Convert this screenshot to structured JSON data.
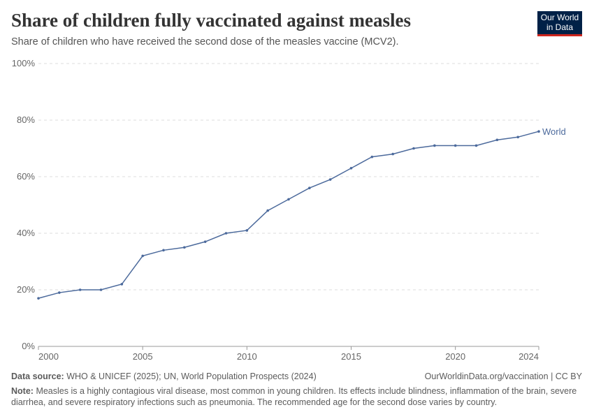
{
  "header": {
    "title": "Share of children fully vaccinated against measles",
    "subtitle": "Share of children who have received the second dose of the measles vaccine (MCV2).",
    "logo_text": "Our World in Data"
  },
  "chart_data": {
    "type": "line",
    "title": "Share of children fully vaccinated against measles",
    "x": [
      2000,
      2001,
      2002,
      2003,
      2004,
      2005,
      2006,
      2007,
      2008,
      2009,
      2010,
      2011,
      2012,
      2013,
      2014,
      2015,
      2016,
      2017,
      2018,
      2019,
      2020,
      2021,
      2022,
      2023,
      2024
    ],
    "series": [
      {
        "name": "World",
        "color": "#4c6a9c",
        "values": [
          17,
          19,
          20,
          20,
          22,
          32,
          34,
          35,
          37,
          40,
          41,
          48,
          52,
          56,
          59,
          63,
          67,
          68,
          70,
          71,
          71,
          71,
          73,
          74,
          76
        ]
      }
    ],
    "xlim": [
      2000,
      2024
    ],
    "ylim": [
      0,
      100
    ],
    "x_ticks": [
      "2000",
      "2005",
      "2010",
      "2015",
      "2020",
      "2024"
    ],
    "y_ticks": [
      "0%",
      "20%",
      "40%",
      "60%",
      "80%",
      "100%"
    ],
    "grid": "horizontal dashed",
    "legend": "right end label"
  },
  "footer": {
    "source_label": "Data source:",
    "source": "WHO & UNICEF (2025); UN, World Population Prospects (2024)",
    "url": "OurWorldinData.org/vaccination | CC BY",
    "note_label": "Note:",
    "note": "Measles is a highly contagious viral disease, most common in young children. Its effects include blindness, inflammation of the brain, severe diarrhea, and severe respiratory infections such as pneumonia. The recommended age for the second dose varies by country."
  }
}
